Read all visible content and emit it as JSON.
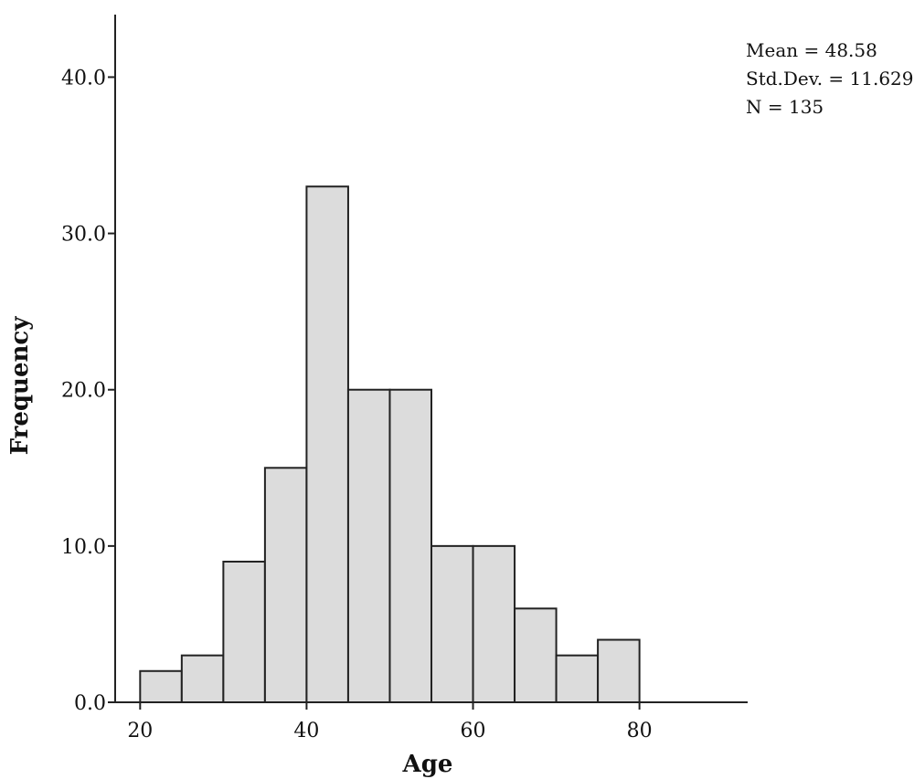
{
  "chart_data": {
    "type": "bar",
    "title": "",
    "xlabel": "Age",
    "ylabel": "Frequency",
    "bin_width": 5,
    "bins": [
      {
        "start": 20,
        "end": 25,
        "value": 2
      },
      {
        "start": 25,
        "end": 30,
        "value": 3
      },
      {
        "start": 30,
        "end": 35,
        "value": 9
      },
      {
        "start": 35,
        "end": 40,
        "value": 15
      },
      {
        "start": 40,
        "end": 45,
        "value": 33
      },
      {
        "start": 45,
        "end": 50,
        "value": 20
      },
      {
        "start": 50,
        "end": 55,
        "value": 20
      },
      {
        "start": 55,
        "end": 60,
        "value": 10
      },
      {
        "start": 60,
        "end": 65,
        "value": 10
      },
      {
        "start": 65,
        "end": 70,
        "value": 6
      },
      {
        "start": 70,
        "end": 75,
        "value": 3
      },
      {
        "start": 75,
        "end": 80,
        "value": 4
      }
    ],
    "xlim": [
      17,
      93
    ],
    "ylim": [
      0,
      44
    ],
    "xticks": [
      {
        "value": 20,
        "label": "20"
      },
      {
        "value": 40,
        "label": "40"
      },
      {
        "value": 60,
        "label": "60"
      },
      {
        "value": 80,
        "label": "80"
      }
    ],
    "yticks": [
      {
        "value": 0,
        "label": "0.0"
      },
      {
        "value": 10,
        "label": "10.0"
      },
      {
        "value": 20,
        "label": "20.0"
      },
      {
        "value": 30,
        "label": "30.0"
      },
      {
        "value": 40,
        "label": "40.0"
      }
    ],
    "grid": false,
    "bar_color": "#dcdcdc",
    "bar_edge_color": "#222222",
    "stats": {
      "mean": "Mean = 48.58",
      "std_dev": "Std.Dev. = 11.629",
      "n": "N = 135"
    },
    "stats_placement": "top-right"
  }
}
